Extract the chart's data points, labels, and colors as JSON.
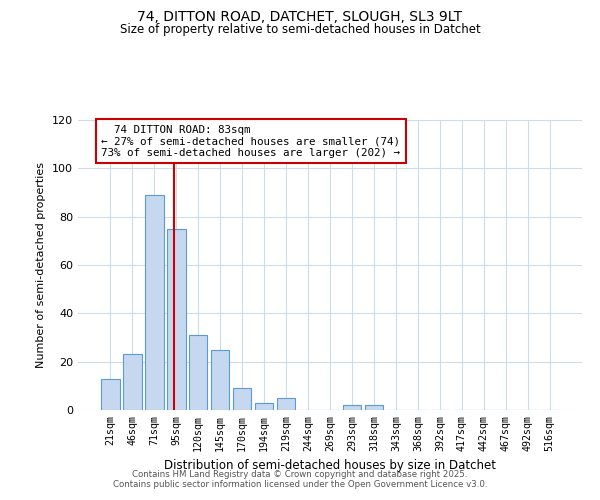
{
  "title1": "74, DITTON ROAD, DATCHET, SLOUGH, SL3 9LT",
  "title2": "Size of property relative to semi-detached houses in Datchet",
  "xlabel": "Distribution of semi-detached houses by size in Datchet",
  "ylabel": "Number of semi-detached properties",
  "bar_labels": [
    "21sqm",
    "46sqm",
    "71sqm",
    "95sqm",
    "120sqm",
    "145sqm",
    "170sqm",
    "194sqm",
    "219sqm",
    "244sqm",
    "269sqm",
    "293sqm",
    "318sqm",
    "343sqm",
    "368sqm",
    "392sqm",
    "417sqm",
    "442sqm",
    "467sqm",
    "492sqm",
    "516sqm"
  ],
  "bar_values": [
    13,
    23,
    89,
    75,
    31,
    25,
    9,
    3,
    5,
    0,
    0,
    2,
    2,
    0,
    0,
    0,
    0,
    0,
    0,
    0,
    0
  ],
  "bar_color": "#c5d8f0",
  "bar_edge_color": "#5b9bd5",
  "ylim": [
    0,
    120
  ],
  "yticks": [
    0,
    20,
    40,
    60,
    80,
    100,
    120
  ],
  "property_line_x": 2.88,
  "property_label": "74 DITTON ROAD: 83sqm",
  "pct_smaller": 27,
  "pct_larger": 73,
  "n_smaller": 74,
  "n_larger": 202,
  "annotation_box_color": "#ffffff",
  "annotation_box_edge_color": "#cc0000",
  "line_color": "#cc0000",
  "footer1": "Contains HM Land Registry data © Crown copyright and database right 2025.",
  "footer2": "Contains public sector information licensed under the Open Government Licence v3.0.",
  "bg_color": "#ffffff",
  "grid_color": "#ccdde8"
}
